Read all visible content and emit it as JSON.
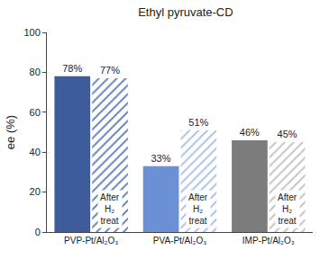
{
  "chart_data": {
    "type": "bar",
    "title": "Ethyl pyruvate-CD",
    "y_label": "ee (%)",
    "categories": [
      "PVP-Pt/Al₂O₃",
      "PVA-Pt/Al₂O₃",
      "IMP-Pt/Al₂O₃"
    ],
    "series": [
      {
        "colors": [
          "#3e5c9c",
          "#6c90d4",
          "#7c7c7c"
        ],
        "values": [
          78,
          33,
          46
        ],
        "value_labels": [
          "78%",
          "33%",
          "46%"
        ]
      },
      {
        "name": "After H₂ treat",
        "colors": [
          "#5775b4",
          "#a3bbe6",
          "#bdbdbd"
        ],
        "marker": "hatched",
        "values": [
          77,
          51,
          45
        ],
        "value_labels": [
          "77%",
          "51%",
          "45%"
        ]
      }
    ],
    "ylim": [
      0,
      100
    ],
    "yticks": [
      0,
      20,
      40,
      60,
      80,
      100
    ],
    "grid": false,
    "data_labels": true
  }
}
